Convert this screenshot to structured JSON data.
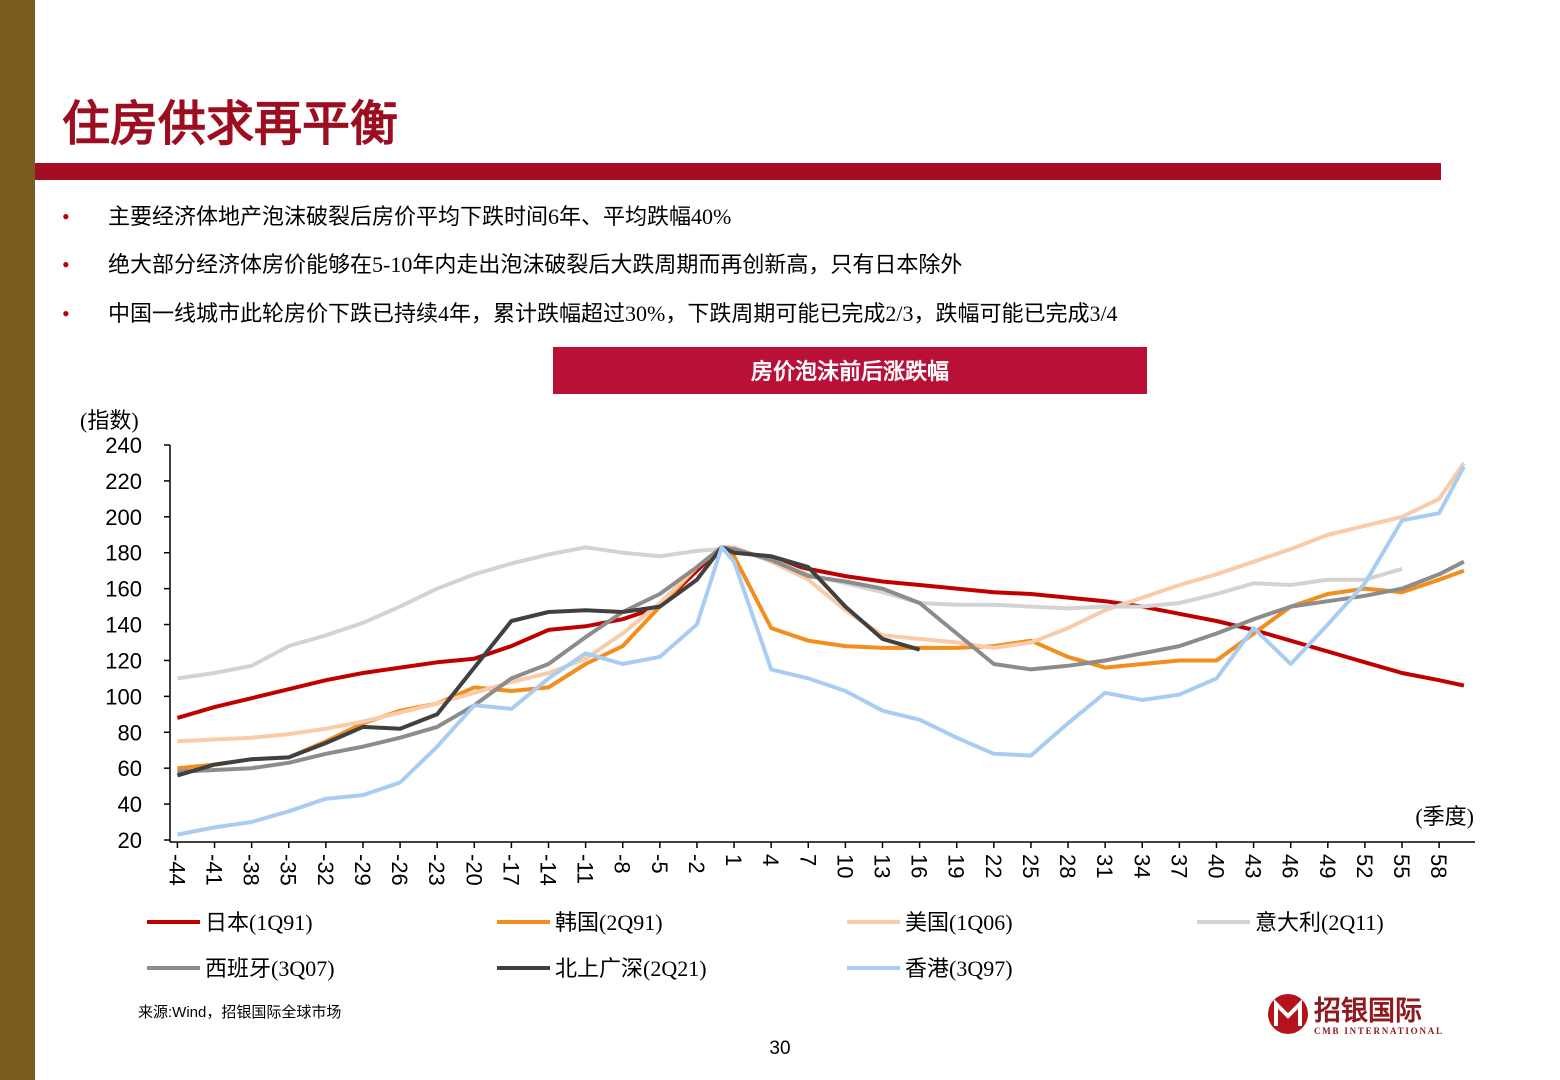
{
  "header": {
    "title": "住房供求再平衡"
  },
  "bullets": [
    "主要经济体地产泡沫破裂后房价平均下跌时间6年、平均跌幅40%",
    "绝大部分经济体房价能够在5-10年内走出泡沫破裂后大跌周期而再创新高，只有日本除外",
    "中国一线城市此轮房价下跌已持续4年，累计跌幅超过30%，下跌周期可能已完成2/3，跌幅可能已完成3/4"
  ],
  "chart_data": {
    "type": "line",
    "title": "房价泡沫前后涨跌幅",
    "y_label": "(指数)",
    "x_label": "(季度)",
    "x": [
      -44,
      -41,
      -38,
      -35,
      -32,
      -29,
      -26,
      -23,
      -20,
      -17,
      -14,
      -11,
      -8,
      -5,
      -2,
      0,
      1,
      4,
      7,
      10,
      13,
      16,
      19,
      22,
      25,
      28,
      31,
      34,
      37,
      40,
      43,
      46,
      49,
      52,
      55,
      58,
      60
    ],
    "series": [
      {
        "name": "日本(1Q91)",
        "color": "#c00000",
        "values": [
          88,
          94,
          99,
          104,
          109,
          113,
          116,
          119,
          121,
          128,
          137,
          139,
          143,
          150,
          170,
          183,
          182,
          176,
          171,
          167,
          164,
          162,
          160,
          158,
          157,
          155,
          153,
          150,
          146,
          142,
          137,
          131,
          125,
          119,
          113,
          109,
          106
        ]
      },
      {
        "name": "韩国(2Q91)",
        "color": "#f28e1e",
        "values": [
          60,
          62,
          65,
          66,
          75,
          85,
          92,
          96,
          105,
          103,
          105,
          118,
          128,
          150,
          172,
          183,
          178,
          138,
          131,
          128,
          127,
          127,
          127,
          128,
          131,
          122,
          116,
          118,
          120,
          120,
          135,
          150,
          157,
          160,
          158,
          165,
          170
        ]
      },
      {
        "name": "美国(1Q06)",
        "color": "#f9cba8",
        "values": [
          75,
          76,
          77,
          79,
          82,
          86,
          91,
          96,
          102,
          108,
          113,
          121,
          135,
          152,
          172,
          183,
          183,
          175,
          165,
          148,
          134,
          132,
          130,
          127,
          130,
          138,
          148,
          155,
          162,
          168,
          175,
          182,
          190,
          195,
          200,
          210,
          230
        ]
      },
      {
        "name": "意大利(2Q11)",
        "color": "#d3d3d3",
        "values": [
          110,
          113,
          117,
          128,
          134,
          141,
          150,
          160,
          168,
          174,
          179,
          183,
          180,
          178,
          181,
          182,
          182,
          176,
          168,
          163,
          158,
          152,
          151,
          151,
          150,
          149,
          150,
          150,
          152,
          157,
          163,
          162,
          165,
          165,
          171,
          null,
          null
        ]
      },
      {
        "name": "西班牙(3Q07)",
        "color": "#8c8c8c",
        "values": [
          58,
          59,
          60,
          63,
          68,
          72,
          77,
          83,
          95,
          110,
          118,
          133,
          147,
          157,
          172,
          183,
          182,
          176,
          167,
          164,
          160,
          152,
          135,
          118,
          115,
          117,
          120,
          124,
          128,
          135,
          143,
          150,
          153,
          156,
          160,
          168,
          175
        ]
      },
      {
        "name": "北上广深(2Q21)",
        "color": "#404040",
        "values": [
          56,
          62,
          65,
          66,
          74,
          83,
          82,
          90,
          116,
          142,
          147,
          148,
          147,
          150,
          165,
          183,
          180,
          178,
          172,
          150,
          132,
          126,
          null,
          null,
          null,
          null,
          null,
          null,
          null,
          null,
          null,
          null,
          null,
          null,
          null,
          null,
          null
        ]
      },
      {
        "name": "香港(3Q97)",
        "color": "#a9cdf2",
        "values": [
          23,
          27,
          30,
          36,
          43,
          45,
          52,
          72,
          95,
          93,
          110,
          124,
          118,
          122,
          140,
          183,
          175,
          115,
          110,
          103,
          92,
          87,
          77,
          68,
          67,
          85,
          102,
          98,
          101,
          110,
          138,
          118,
          140,
          163,
          198,
          202,
          228
        ]
      }
    ],
    "xlim": [
      -44.6,
      60.9
    ],
    "ylim": [
      20,
      240
    ],
    "xticks": [
      -44,
      -41,
      -38,
      -35,
      -32,
      -29,
      -26,
      -23,
      -20,
      -17,
      -14,
      -11,
      -8,
      -5,
      -2,
      1,
      4,
      7,
      10,
      13,
      16,
      19,
      22,
      25,
      28,
      31,
      34,
      37,
      40,
      43,
      46,
      49,
      52,
      55,
      58
    ],
    "yticks": [
      20,
      40,
      60,
      80,
      100,
      120,
      140,
      160,
      180,
      200,
      220,
      240
    ]
  },
  "source": "来源:Wind，招银国际全球市场",
  "page_number": "30",
  "logo": {
    "name": "招银国际",
    "subtitle": "CMB INTERNATIONAL"
  }
}
